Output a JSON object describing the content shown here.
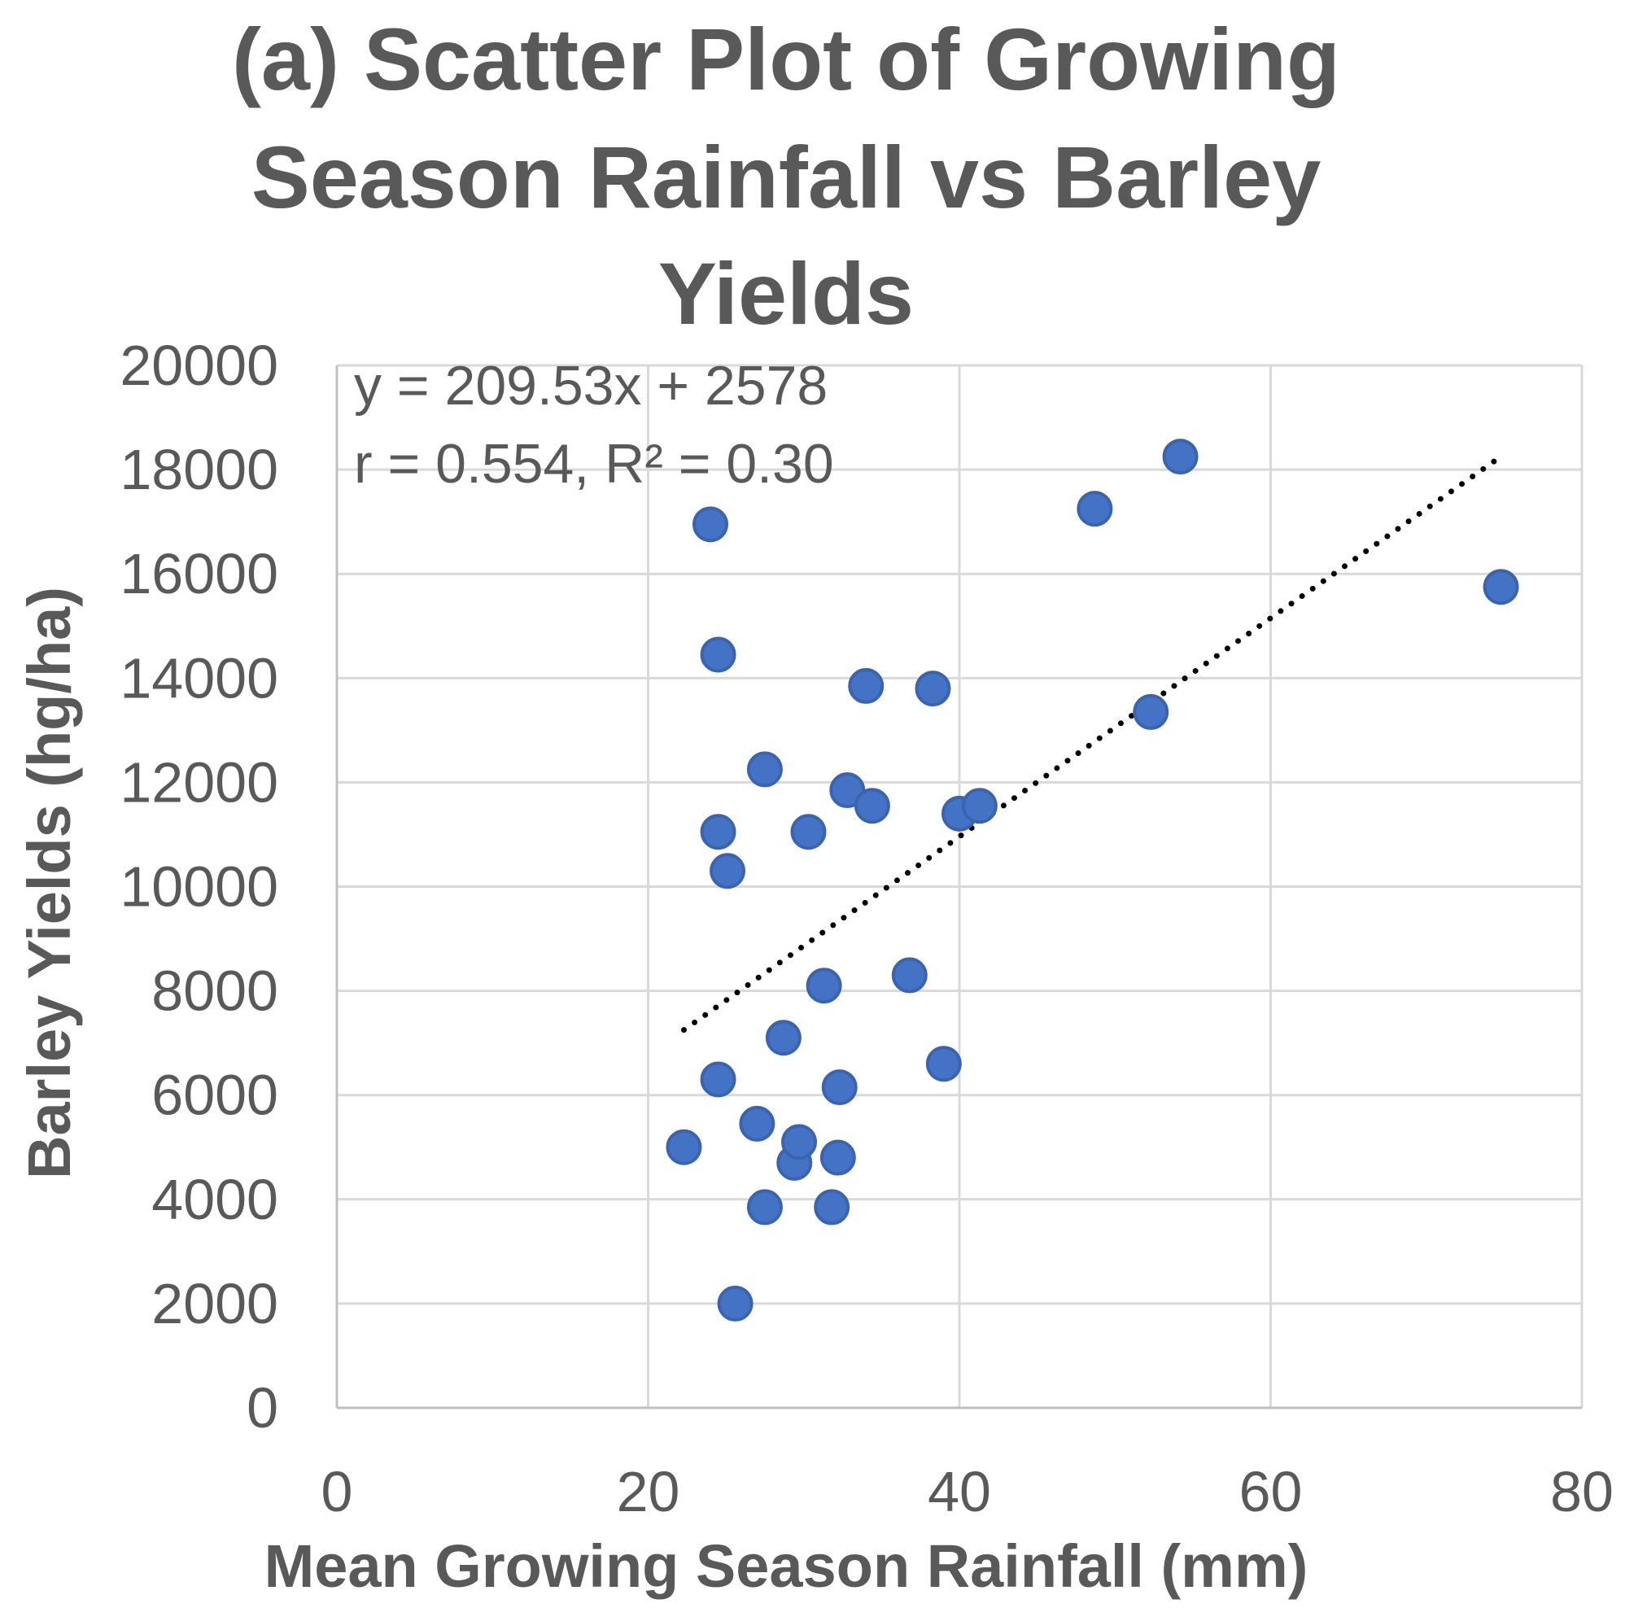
{
  "chart_data": {
    "type": "scatter",
    "title_lines": [
      "(a) Scatter Plot of Growing",
      "Season Rainfall vs Barley",
      "Yields"
    ],
    "xlabel": "Mean Growing Season Rainfall (mm)",
    "ylabel": "Barley Yields (hg/ha)",
    "xlim": [
      0,
      80
    ],
    "ylim": [
      0,
      20000
    ],
    "xticks": [
      0,
      20,
      40,
      60,
      80
    ],
    "yticks": [
      0,
      2000,
      4000,
      6000,
      8000,
      10000,
      12000,
      14000,
      16000,
      18000,
      20000
    ],
    "grid": true,
    "marker_color": "#4472c4",
    "trendline": {
      "style": "dotted",
      "color": "#000000",
      "slope": 209.53,
      "intercept": 2578,
      "x_range": [
        22.3,
        74.8
      ]
    },
    "annotations": [
      "y = 209.53x + 2578",
      "r = 0.554, R² = 0.30"
    ],
    "series": [
      {
        "name": "Barley Yields",
        "points": [
          [
            24.0,
            16950
          ],
          [
            24.5,
            14450
          ],
          [
            24.5,
            11050
          ],
          [
            25.1,
            10300
          ],
          [
            24.5,
            6300
          ],
          [
            22.3,
            5000
          ],
          [
            25.6,
            2000
          ],
          [
            27.0,
            5450
          ],
          [
            27.5,
            3850
          ],
          [
            27.5,
            12250
          ],
          [
            28.7,
            7100
          ],
          [
            29.4,
            4700
          ],
          [
            29.7,
            5100
          ],
          [
            30.3,
            11050
          ],
          [
            31.3,
            8100
          ],
          [
            31.8,
            3850
          ],
          [
            32.2,
            4800
          ],
          [
            32.3,
            6150
          ],
          [
            32.8,
            11850
          ],
          [
            34.0,
            13850
          ],
          [
            34.4,
            11550
          ],
          [
            36.8,
            8300
          ],
          [
            38.3,
            13800
          ],
          [
            39.0,
            6600
          ],
          [
            40.0,
            11400
          ],
          [
            41.3,
            11550
          ],
          [
            48.7,
            17250
          ],
          [
            52.3,
            13350
          ],
          [
            54.2,
            18250
          ],
          [
            74.8,
            15750
          ]
        ]
      }
    ]
  }
}
